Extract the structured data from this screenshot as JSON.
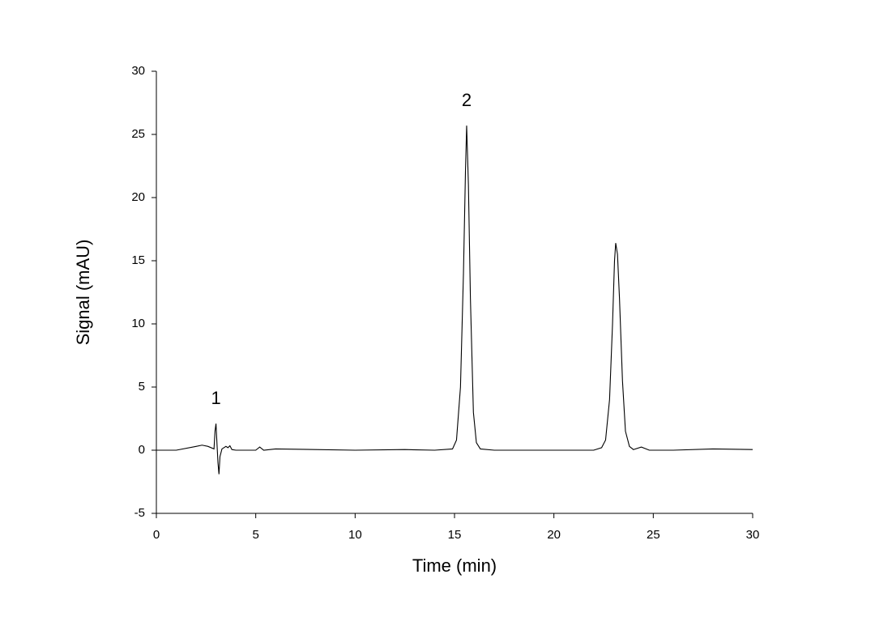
{
  "chart_data": {
    "type": "line",
    "xlabel": "Time (min)",
    "ylabel": "Signal (mAU)",
    "x": [
      0,
      1,
      2,
      2.3,
      2.6,
      2.9,
      2.95,
      3.0,
      3.05,
      3.1,
      3.15,
      3.2,
      3.3,
      3.5,
      3.6,
      3.7,
      3.8,
      4,
      5,
      5.2,
      5.4,
      6,
      10,
      12.5,
      14,
      14.9,
      15.1,
      15.3,
      15.45,
      15.55,
      15.61,
      15.7,
      15.8,
      15.95,
      16.1,
      16.3,
      17,
      20,
      22,
      22.4,
      22.6,
      22.8,
      22.95,
      23.05,
      23.11,
      23.2,
      23.3,
      23.45,
      23.6,
      23.8,
      24,
      24.4,
      24.8,
      26,
      28,
      30
    ],
    "series": [
      {
        "color": "#000000",
        "values": [
          0,
          0,
          0.3,
          0.4,
          0.3,
          0.1,
          1.5,
          2.1,
          0.5,
          -1.0,
          -1.9,
          -0.5,
          0.1,
          0.3,
          0.2,
          0.35,
          0.05,
          0,
          0,
          0.25,
          0,
          0.1,
          0,
          0.05,
          0,
          0.1,
          0.8,
          5,
          14,
          22,
          25.7,
          21,
          12,
          3,
          0.6,
          0.1,
          0,
          0,
          0,
          0.2,
          0.8,
          4,
          10,
          15,
          16.4,
          15.5,
          12,
          5.5,
          1.5,
          0.3,
          0.05,
          0.25,
          0,
          0,
          0.1,
          0.05
        ]
      }
    ],
    "annotations": [
      "1",
      "2"
    ],
    "xlim": [
      0,
      30
    ],
    "xticks": [
      0,
      5,
      10,
      15,
      20,
      25,
      30
    ],
    "ylim": [
      -5,
      30
    ],
    "yticks": [
      -5,
      0,
      5,
      10,
      15,
      20,
      25,
      30
    ]
  }
}
